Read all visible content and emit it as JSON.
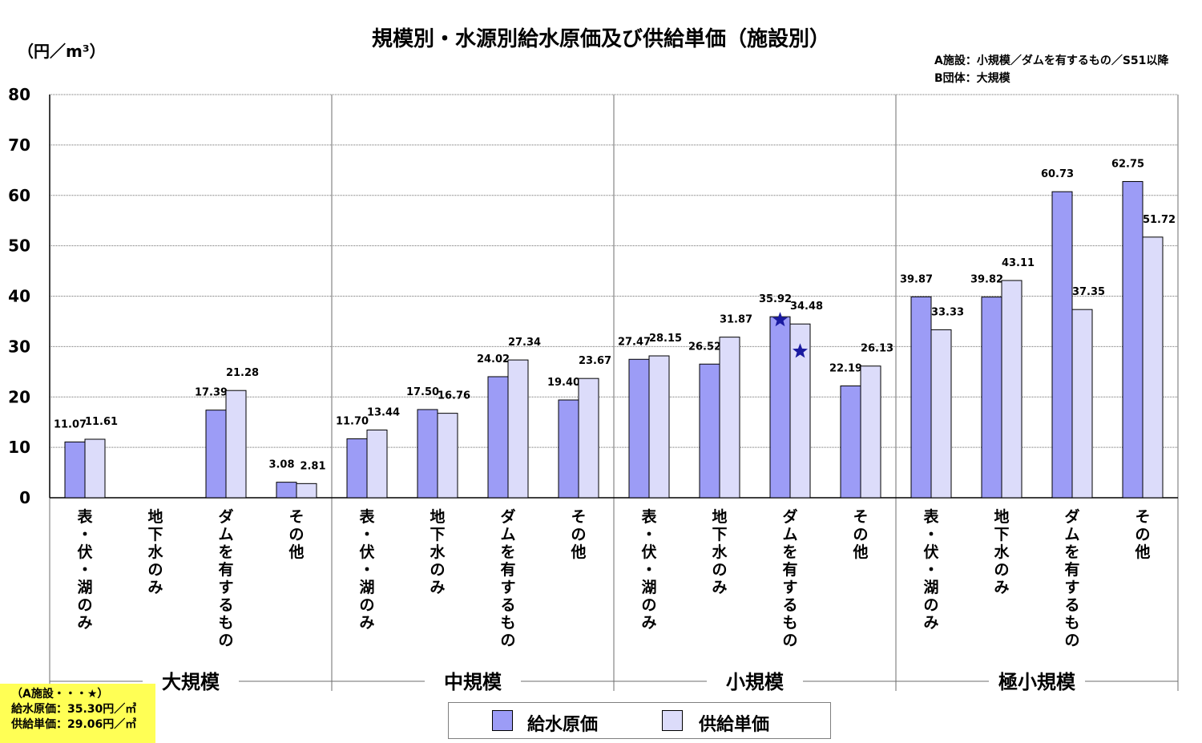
{
  "title": "規模別・水源別給水原価及び供給単価（施設別）",
  "unit_label": "（円／m³）",
  "notes": {
    "line1": "A施設：小規模／ダムを有するもの／S51以降",
    "line2": "B団体：大規模"
  },
  "highlight_box": {
    "line1": "（A施設・・・★）",
    "line2": "給水原価：35.30円／㎥",
    "line3": "供給単価：29.06円／㎥"
  },
  "colors": {
    "supply_cost": "#9c9cf6",
    "supply_price": "#dcdcfa",
    "star": "#1a1aa0",
    "highlight_box": "#ffff55"
  },
  "chart_data": {
    "type": "bar",
    "ylim": [
      0,
      80
    ],
    "yticks": [
      0,
      10,
      20,
      30,
      40,
      50,
      60,
      70,
      80
    ],
    "grid": true,
    "legend_position": "bottom",
    "groups": [
      "大規模",
      "中規模",
      "小規模",
      "極小規模"
    ],
    "category_labels": [
      "表・伏・湖のみ",
      "地下水のみ",
      "ダムを有するもの",
      "その他"
    ],
    "series": [
      {
        "name": "給水原価",
        "values": [
          11.07,
          null,
          17.39,
          3.08,
          11.7,
          17.5,
          24.02,
          19.4,
          27.47,
          26.52,
          35.92,
          22.19,
          39.87,
          39.82,
          60.73,
          62.75
        ],
        "labels": [
          "11.07",
          "",
          "17.39",
          "3.08",
          "11.70",
          "17.50",
          "24.02",
          "19.40",
          "27.47",
          "26.52",
          "35.92",
          "22.19",
          "39.87",
          "39.82",
          "60.73",
          "62.75"
        ]
      },
      {
        "name": "供給単価",
        "values": [
          11.61,
          null,
          21.28,
          2.81,
          13.44,
          16.76,
          27.34,
          23.67,
          28.15,
          31.87,
          34.48,
          26.13,
          33.33,
          43.11,
          37.35,
          51.72
        ],
        "labels": [
          "11.61",
          "",
          "21.28",
          "2.81",
          "13.44",
          "16.76",
          "27.34",
          "23.67",
          "28.15",
          "31.87",
          "34.48",
          "26.13",
          "33.33",
          "43.11",
          "37.35",
          "51.72"
        ]
      }
    ],
    "stars": [
      {
        "category_index": 10,
        "series": "給水原価",
        "value": 35.3
      },
      {
        "category_index": 10,
        "series": "供給単価",
        "value": 29.06
      }
    ]
  }
}
